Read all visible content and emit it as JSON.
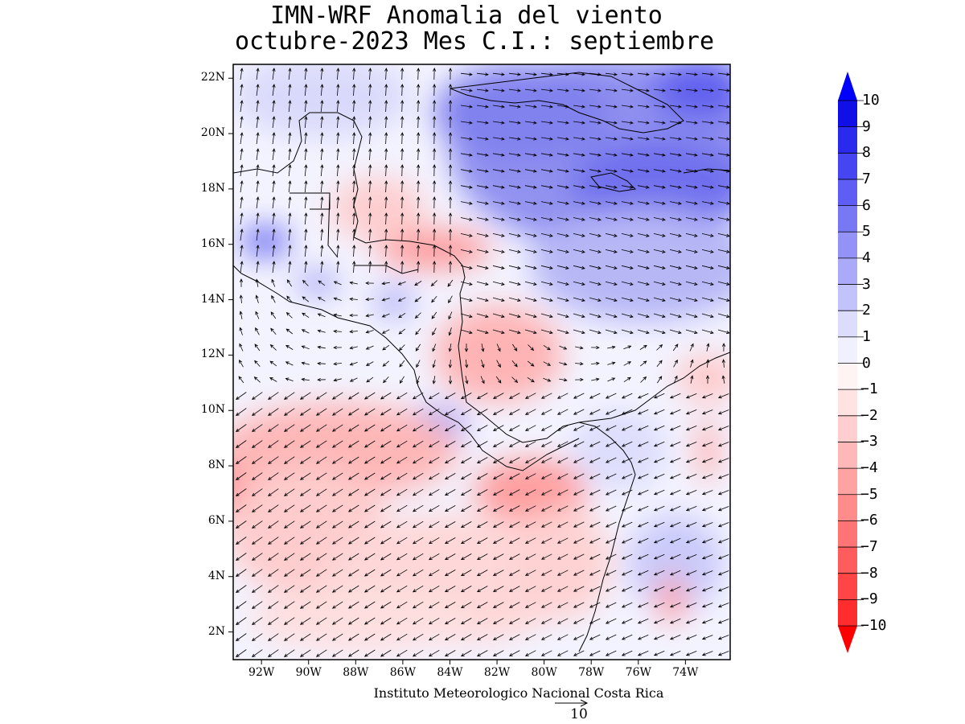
{
  "title": {
    "line1": "IMN-WRF Anomalia del viento",
    "line2": "octubre-2023 Mes C.I.: septiembre"
  },
  "map": {
    "lon_range": [
      -93.2,
      -72.1
    ],
    "lat_range": [
      1.0,
      22.5
    ],
    "lat_ticks": [
      {
        "value": 22,
        "label": "22N"
      },
      {
        "value": 20,
        "label": "20N"
      },
      {
        "value": 18,
        "label": "18N"
      },
      {
        "value": 16,
        "label": "16N"
      },
      {
        "value": 14,
        "label": "14N"
      },
      {
        "value": 12,
        "label": "12N"
      },
      {
        "value": 10,
        "label": "10N"
      },
      {
        "value": 8,
        "label": "8N"
      },
      {
        "value": 6,
        "label": "6N"
      },
      {
        "value": 4,
        "label": "4N"
      },
      {
        "value": 2,
        "label": "2N"
      }
    ],
    "lon_ticks": [
      {
        "value": -92,
        "label": "92W"
      },
      {
        "value": -90,
        "label": "90W"
      },
      {
        "value": -88,
        "label": "88W"
      },
      {
        "value": -86,
        "label": "86W"
      },
      {
        "value": -84,
        "label": "84W"
      },
      {
        "value": -82,
        "label": "82W"
      },
      {
        "value": -80,
        "label": "80W"
      },
      {
        "value": -78,
        "label": "78W"
      },
      {
        "value": -76,
        "label": "76W"
      },
      {
        "value": -74,
        "label": "74W"
      }
    ]
  },
  "colorbar": {
    "levels": [
      "10",
      "9",
      "8",
      "7",
      "6",
      "5",
      "4",
      "3",
      "2",
      "1",
      "0",
      "-1",
      "-2",
      "-3",
      "-4",
      "-5",
      "-6",
      "-7",
      "-8",
      "-9",
      "-10"
    ],
    "colors": [
      "#1010e6",
      "#2a2aee",
      "#4545f2",
      "#5e5ef4",
      "#7878f5",
      "#9292f7",
      "#aaaaf9",
      "#c3c3fb",
      "#dcdcfd",
      "#f0f0ff",
      "#fff4f4",
      "#ffe2e2",
      "#ffcece",
      "#ffb8b8",
      "#ffa2a2",
      "#ff8b8b",
      "#ff7474",
      "#ff5d5d",
      "#ff4545",
      "#ff2d2d"
    ],
    "top_arrow_color": "#0000ff",
    "bottom_arrow_color": "#ff0000"
  },
  "credit": "Instituto Meteorologico Nacional Costa Rica",
  "reference_vector": "10"
}
